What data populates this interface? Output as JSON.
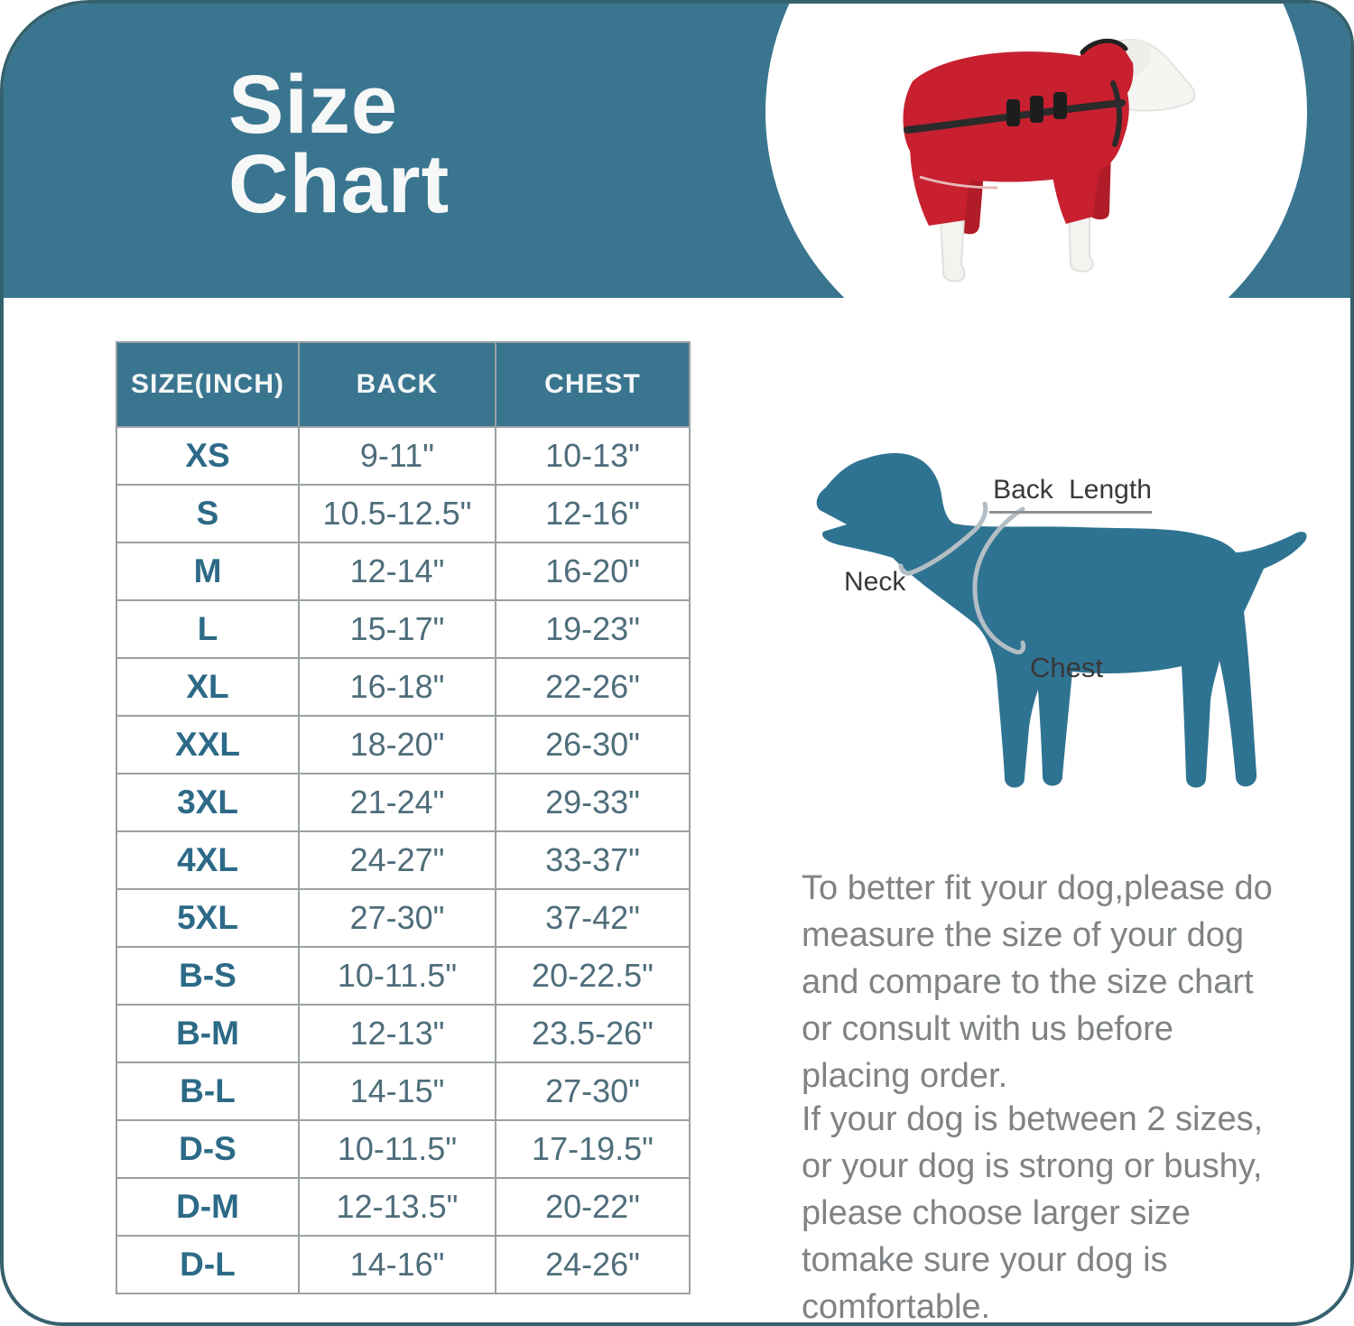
{
  "header": {
    "title_lines": [
      "Size",
      "Chart"
    ]
  },
  "chart_data": {
    "type": "table",
    "title": "Size Chart",
    "columns": [
      "SIZE(INCH)",
      "BACK",
      "CHEST"
    ],
    "rows": [
      [
        "XS",
        "9-11\"",
        "10-13\""
      ],
      [
        "S",
        "10.5-12.5\"",
        "12-16\""
      ],
      [
        "M",
        "12-14\"",
        "16-20\""
      ],
      [
        "L",
        "15-17\"",
        "19-23\""
      ],
      [
        "XL",
        "16-18\"",
        "22-26\""
      ],
      [
        "XXL",
        "18-20\"",
        "26-30\""
      ],
      [
        "3XL",
        "21-24\"",
        "29-33\""
      ],
      [
        "4XL",
        "24-27\"",
        "33-37\""
      ],
      [
        "5XL",
        "27-30\"",
        "37-42\""
      ],
      [
        "B-S",
        "10-11.5\"",
        "20-22.5\""
      ],
      [
        "B-M",
        "12-13\"",
        "23.5-26\""
      ],
      [
        "B-L",
        "14-15\"",
        "27-30\""
      ],
      [
        "D-S",
        "10-11.5\"",
        "17-19.5\""
      ],
      [
        "D-M",
        "12-13.5\"",
        "20-22\""
      ],
      [
        "D-L",
        "14-16\"",
        "24-26\""
      ]
    ]
  },
  "diagram": {
    "back_length_label": "Back Length",
    "neck_label": "Neck",
    "chest_label": "Chest"
  },
  "notes": {
    "paragraph1": "To better fit your dog,please do measure the size of your dog and compare to the size chart or consult with us before placing order.",
    "paragraph2": "If your dog is between 2 sizes, or your dog is strong or bushy, please choose larger size tomake sure your dog is comfortable."
  },
  "colors": {
    "banner_teal": "#3a7590",
    "silhouette_teal": "#2f7392",
    "size_text": "#2c6a87",
    "value_text": "#4e6d7a",
    "body_text": "#7f8386",
    "grid_line": "#9aa0a3",
    "coat_red": "#c8202f",
    "page_border": "#35616e"
  }
}
